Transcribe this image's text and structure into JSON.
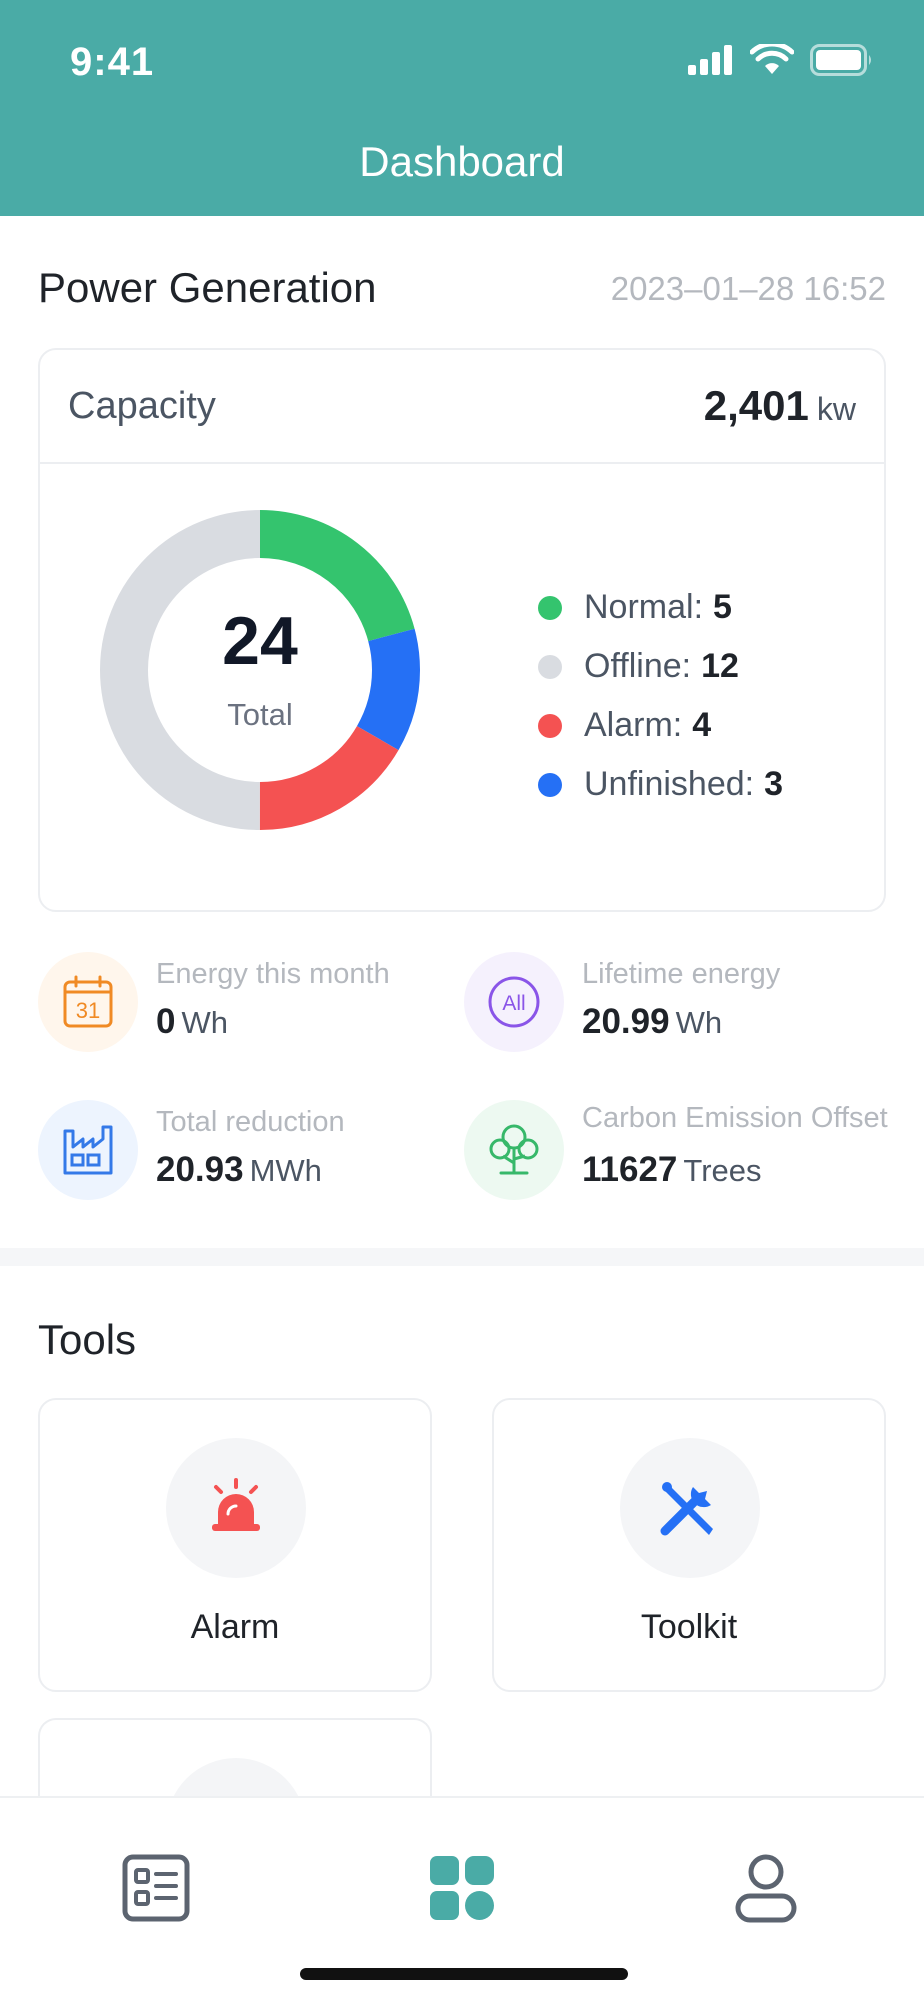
{
  "status_bar": {
    "time": "9:41"
  },
  "header": {
    "title": "Dashboard"
  },
  "power": {
    "title": "Power Generation",
    "timestamp": "2023–01–28 16:52",
    "capacity_label": "Capacity",
    "capacity_value": "2,401",
    "capacity_unit": "kw",
    "total_value": "24",
    "total_label": "Total",
    "legend": [
      {
        "label": "Normal:",
        "value": "5",
        "color": "#34c46e"
      },
      {
        "label": "Offline:",
        "value": "12",
        "color": "#d9dce1"
      },
      {
        "label": "Alarm:",
        "value": "4",
        "color": "#f45252"
      },
      {
        "label": "Unfinished:",
        "value": "3",
        "color": "#2570f5"
      }
    ]
  },
  "stats": [
    {
      "label": "Energy this month",
      "value": "0",
      "unit": "Wh",
      "icon": "calendar-icon",
      "icon_text": "31"
    },
    {
      "label": "Lifetime energy",
      "value": "20.99",
      "unit": "Wh",
      "icon": "all-icon",
      "icon_text": "All"
    },
    {
      "label": "Total reduction",
      "value": "20.93",
      "unit": "MWh",
      "icon": "factory-icon"
    },
    {
      "label": "Carbon Emission Offset",
      "value": "11627",
      "unit": "Trees",
      "icon": "tree-icon"
    }
  ],
  "tools": {
    "title": "Tools",
    "items": [
      {
        "label": "Alarm",
        "icon": "alarm-siren-icon"
      },
      {
        "label": "Toolkit",
        "icon": "toolkit-icon"
      }
    ]
  },
  "tabbar": {
    "items": [
      {
        "icon": "list-icon"
      },
      {
        "icon": "grid-icon",
        "active": true
      },
      {
        "icon": "user-icon"
      }
    ]
  },
  "colors": {
    "header": "#4aaba6",
    "normal": "#34c46e",
    "offline": "#d9dce1",
    "alarm": "#f45252",
    "unfinished": "#2570f5"
  }
}
